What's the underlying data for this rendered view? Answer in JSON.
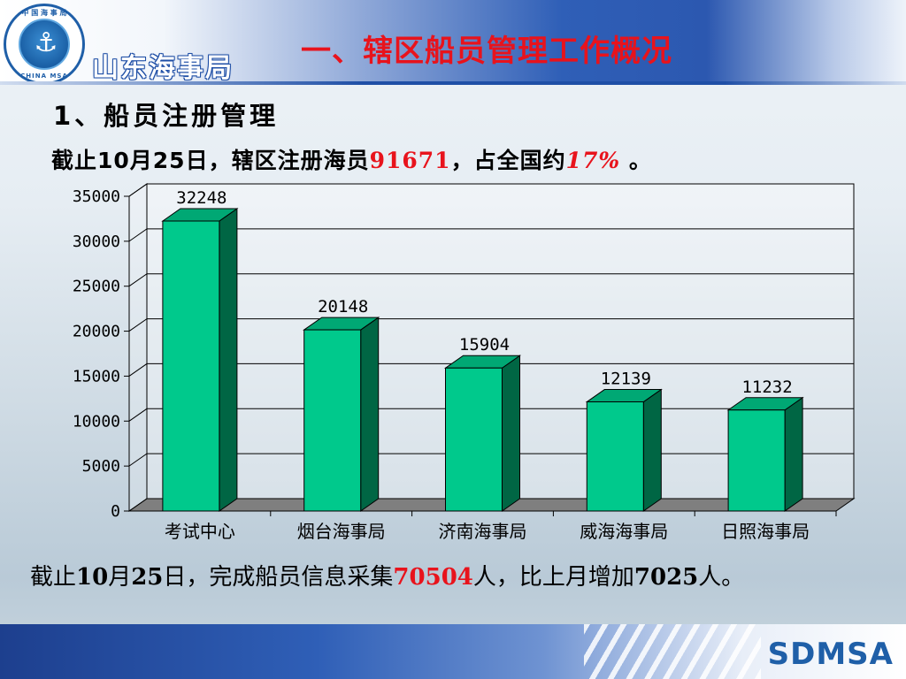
{
  "header": {
    "org_name": "山东海事局",
    "logo_top_text": "中 国 海 事 局",
    "logo_bottom_text": "CHINA MSA",
    "logo_icon": "anchor-icon"
  },
  "slide_title": "一、辖区船员管理工作概况",
  "section_title": "1、船员注册管理",
  "stat_line": {
    "prefix": "截止10月25日，辖区注册海员",
    "registered": "91671",
    "middle": "，占全国约",
    "share": "17%",
    "suffix": " 。"
  },
  "chart_data": {
    "type": "bar",
    "categories": [
      "考试中心",
      "烟台海事局",
      "济南海事局",
      "威海海事局",
      "日照海事局"
    ],
    "values": [
      32248,
      20148,
      15904,
      12139,
      11232
    ],
    "data_labels": [
      "32248",
      "20148",
      "15904",
      "12139",
      "11232"
    ],
    "ylim": [
      0,
      35000
    ],
    "yticks": [
      "0",
      "5000",
      "10000",
      "15000",
      "20000",
      "25000",
      "30000",
      "35000"
    ],
    "grid": true,
    "legend": "none",
    "bar_color": "#00c98c",
    "bar_side_color": "#006644"
  },
  "footnote": {
    "prefix": "截止",
    "date_month": "10",
    "month_char": "月",
    "date_day": "25",
    "text1": "日，完成船员信息采集",
    "collected": "70504",
    "text2": "人，比上月增加",
    "increase": "7025",
    "text3": "人。"
  },
  "footer": {
    "brand": "SDMSA"
  }
}
